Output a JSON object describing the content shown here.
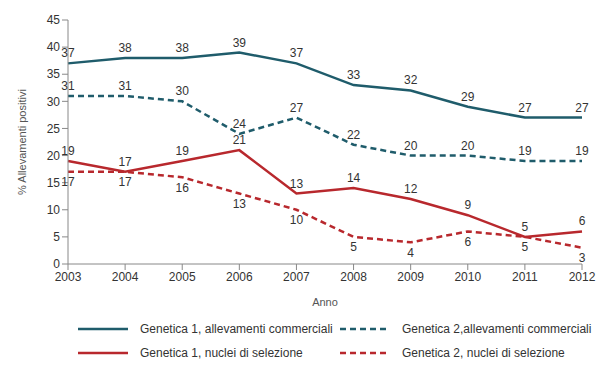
{
  "chart_data": {
    "type": "line",
    "x_label": "Anno",
    "y_label": "% Allevamenti positivi",
    "categories": [
      "2003",
      "2004",
      "2005",
      "2006",
      "2007",
      "2008",
      "2009",
      "2010",
      "2011",
      "2012"
    ],
    "series": [
      {
        "name": "Genetica 1, allevamenti commerciali",
        "color": "#1f5c6b",
        "line_style": "solid",
        "values": [
          37,
          38,
          38,
          39,
          37,
          33,
          32,
          29,
          27,
          27
        ]
      },
      {
        "name": "Genetica 2,allevamenti commerciali",
        "color": "#1f5c6b",
        "line_style": "dashed",
        "values": [
          31,
          31,
          30,
          24,
          27,
          22,
          20,
          20,
          19,
          19
        ]
      },
      {
        "name": "Genetica 1, nuclei di selezione",
        "color": "#b8282d",
        "line_style": "solid",
        "values": [
          19,
          17,
          19,
          21,
          13,
          14,
          12,
          9,
          5,
          6
        ]
      },
      {
        "name": "Genetica 2, nuclei di selezione",
        "color": "#b8282d",
        "line_style": "dashed",
        "values": [
          17,
          17,
          16,
          13,
          10,
          5,
          4,
          6,
          5,
          3
        ]
      }
    ],
    "ylim": [
      0,
      45
    ],
    "yticks": [
      0,
      5,
      10,
      15,
      20,
      25,
      30,
      35,
      40,
      45
    ],
    "grid": false,
    "data_labels": true
  }
}
